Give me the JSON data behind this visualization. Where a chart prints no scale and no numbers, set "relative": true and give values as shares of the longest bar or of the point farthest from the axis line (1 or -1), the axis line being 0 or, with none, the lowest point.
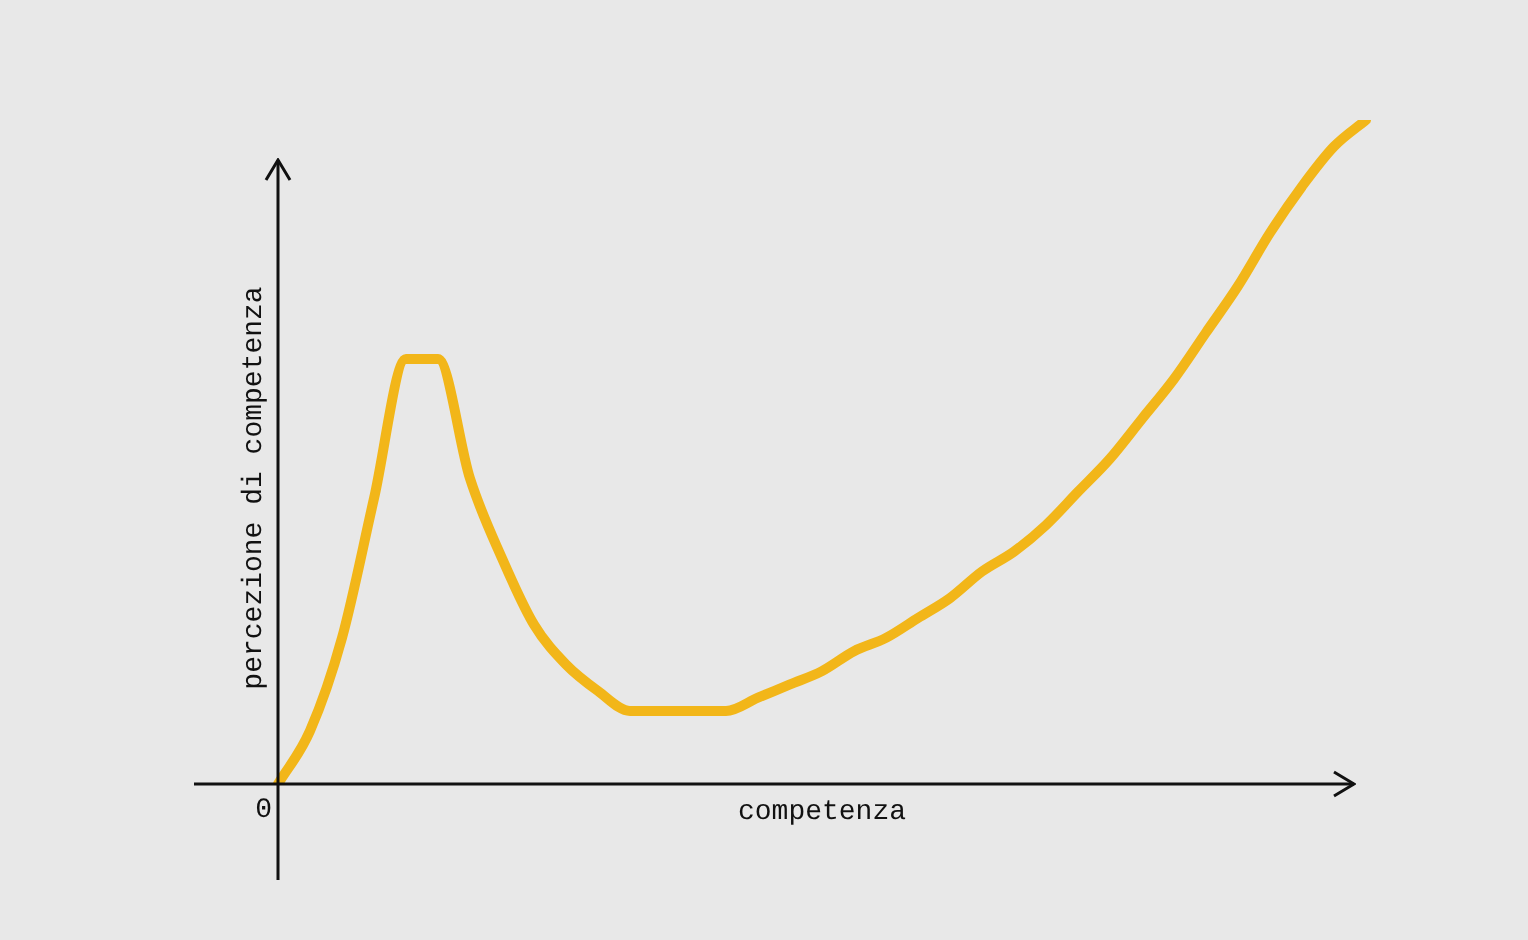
{
  "chart_data": {
    "type": "line",
    "relative": true,
    "xlabel": "competenza",
    "ylabel": "percezione di competenza",
    "annotations": [
      "0"
    ],
    "categories": [
      null,
      null,
      null,
      null,
      null,
      null,
      null,
      null,
      null,
      null,
      null,
      null,
      null,
      null,
      null,
      null,
      null,
      null,
      null,
      null,
      null,
      null,
      null,
      null,
      null,
      null,
      null,
      null,
      null,
      null,
      null,
      null,
      null,
      null,
      null
    ],
    "series": [
      {
        "color": "#f2b619",
        "values": [
          0,
          0.08,
          0.22,
          0.43,
          0.64,
          0.64,
          0.46,
          0.34,
          0.24,
          0.18,
          0.14,
          0.11,
          0.11,
          0.11,
          0.11,
          0.13,
          0.15,
          0.17,
          0.2,
          0.22,
          0.25,
          0.28,
          0.32,
          0.35,
          0.39,
          0.44,
          0.49,
          0.55,
          0.61,
          0.68,
          0.75,
          0.83,
          0.9,
          0.96,
          1.0
        ]
      }
    ],
    "marker": "none",
    "line_style": "solid"
  }
}
